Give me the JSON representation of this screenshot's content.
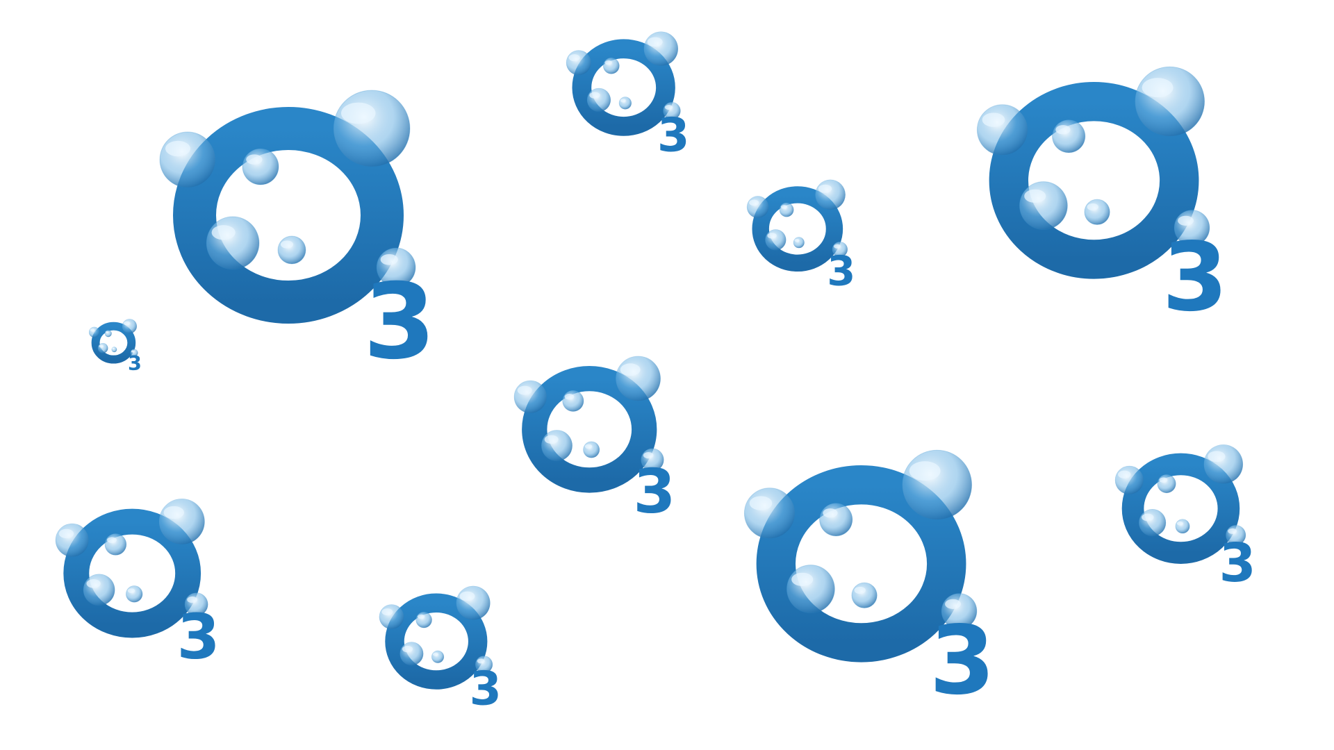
{
  "scene": {
    "background_color": "#ffffff",
    "logo_name": "ozone-o3-logo",
    "logo_subscript": "3",
    "ring_color": "#2a86c8",
    "ring_color_dark": "#1d6aa8",
    "bubble_color": "#6fb4e4",
    "bubble_highlight": "#e8f5ff",
    "subscript_color": "#1f78bd",
    "logo_count": 10
  }
}
